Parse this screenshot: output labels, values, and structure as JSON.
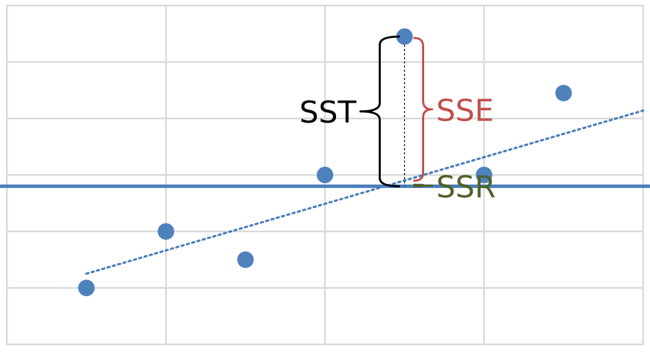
{
  "labels": {
    "sst": "SST",
    "sse": "SSE",
    "ssr": "SSR"
  },
  "colors": {
    "sst": "#000000",
    "sse": "#c0504d",
    "ssr": "#4f6228",
    "points": "#4f81bd",
    "lines": "#4a7ebb",
    "grid": "#d9d9d9"
  },
  "chart_data": {
    "type": "scatter",
    "grid": true,
    "x_range": [
      0,
      8
    ],
    "y_range": [
      0,
      6
    ],
    "points": [
      {
        "x": 1,
        "y": 1.0
      },
      {
        "x": 2,
        "y": 2.0
      },
      {
        "x": 3,
        "y": 1.5
      },
      {
        "x": 4,
        "y": 3.0
      },
      {
        "x": 5,
        "y": 5.45
      },
      {
        "x": 6,
        "y": 3.0
      },
      {
        "x": 7,
        "y": 4.45
      }
    ],
    "mean_y": 2.8,
    "regression": {
      "slope": 0.43,
      "intercept": 0.7,
      "x_start": 1,
      "x_end": 8
    },
    "highlight_index": 4
  }
}
